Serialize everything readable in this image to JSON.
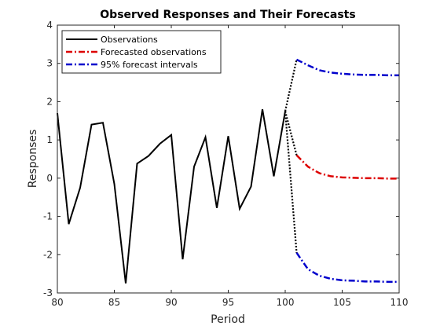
{
  "chart_data": {
    "type": "line",
    "title": "Observed Responses and Their Forecasts",
    "xlabel": "Period",
    "ylabel": "Responses",
    "xlim": [
      80,
      110
    ],
    "ylim": [
      -3,
      4
    ],
    "x_ticks": [
      80,
      85,
      90,
      95,
      100,
      105,
      110
    ],
    "y_ticks": [
      -3,
      -2,
      -1,
      0,
      1,
      2,
      3,
      4
    ],
    "x_tick_labels": [
      "80",
      "85",
      "90",
      "95",
      "100",
      "105",
      "110"
    ],
    "y_tick_labels": [
      "-3",
      "-2",
      "-1",
      "0",
      "1",
      "2",
      "3",
      "4"
    ],
    "grid": false,
    "legend_position": "top-left",
    "legend": [
      {
        "label": "Observations",
        "color": "#000000",
        "style": "solid"
      },
      {
        "label": "Forecasted observations",
        "color": "#dd0000",
        "style": "dashdot"
      },
      {
        "label": "95% forecast intervals",
        "color": "#0000cc",
        "style": "dashdot"
      }
    ],
    "series": [
      {
        "name": "Observations",
        "color": "#000000",
        "style": "solid",
        "x": [
          80,
          81,
          82,
          83,
          84,
          85,
          86,
          87,
          88,
          89,
          90,
          91,
          92,
          93,
          94,
          95,
          96,
          97,
          98,
          99,
          100
        ],
        "y": [
          1.7,
          -1.2,
          -0.25,
          1.4,
          1.45,
          -0.15,
          -2.75,
          0.38,
          0.58,
          0.9,
          1.13,
          -2.12,
          0.3,
          1.07,
          -0.78,
          1.1,
          -0.8,
          -0.22,
          1.8,
          0.05,
          1.75
        ]
      },
      {
        "name": "Forecasted observations",
        "color": "#dd0000",
        "style": "dashdot",
        "x": [
          101,
          102,
          103,
          104,
          105,
          106,
          107,
          108,
          109,
          110
        ],
        "y": [
          0.6,
          0.3,
          0.13,
          0.05,
          0.02,
          0.01,
          0.0,
          0.0,
          -0.01,
          -0.01
        ]
      },
      {
        "name": "95% forecast intervals (upper)",
        "color": "#0000cc",
        "style": "dashdot",
        "x": [
          101,
          102,
          103,
          104,
          105,
          106,
          107,
          108,
          109,
          110
        ],
        "y": [
          3.1,
          2.95,
          2.82,
          2.76,
          2.73,
          2.71,
          2.7,
          2.7,
          2.69,
          2.69
        ]
      },
      {
        "name": "95% forecast intervals (lower)",
        "color": "#0000cc",
        "style": "dashdot",
        "x": [
          101,
          102,
          103,
          104,
          105,
          106,
          107,
          108,
          109,
          110
        ],
        "y": [
          -1.95,
          -2.38,
          -2.55,
          -2.63,
          -2.67,
          -2.68,
          -2.7,
          -2.7,
          -2.71,
          -2.71
        ]
      }
    ],
    "connectors": {
      "color": "#000000",
      "style": "dotted",
      "from": {
        "x": 100,
        "y": 1.75
      },
      "to": [
        {
          "x": 101,
          "y": 0.6
        },
        {
          "x": 101,
          "y": 3.1
        },
        {
          "x": 101,
          "y": -1.95
        }
      ]
    }
  }
}
